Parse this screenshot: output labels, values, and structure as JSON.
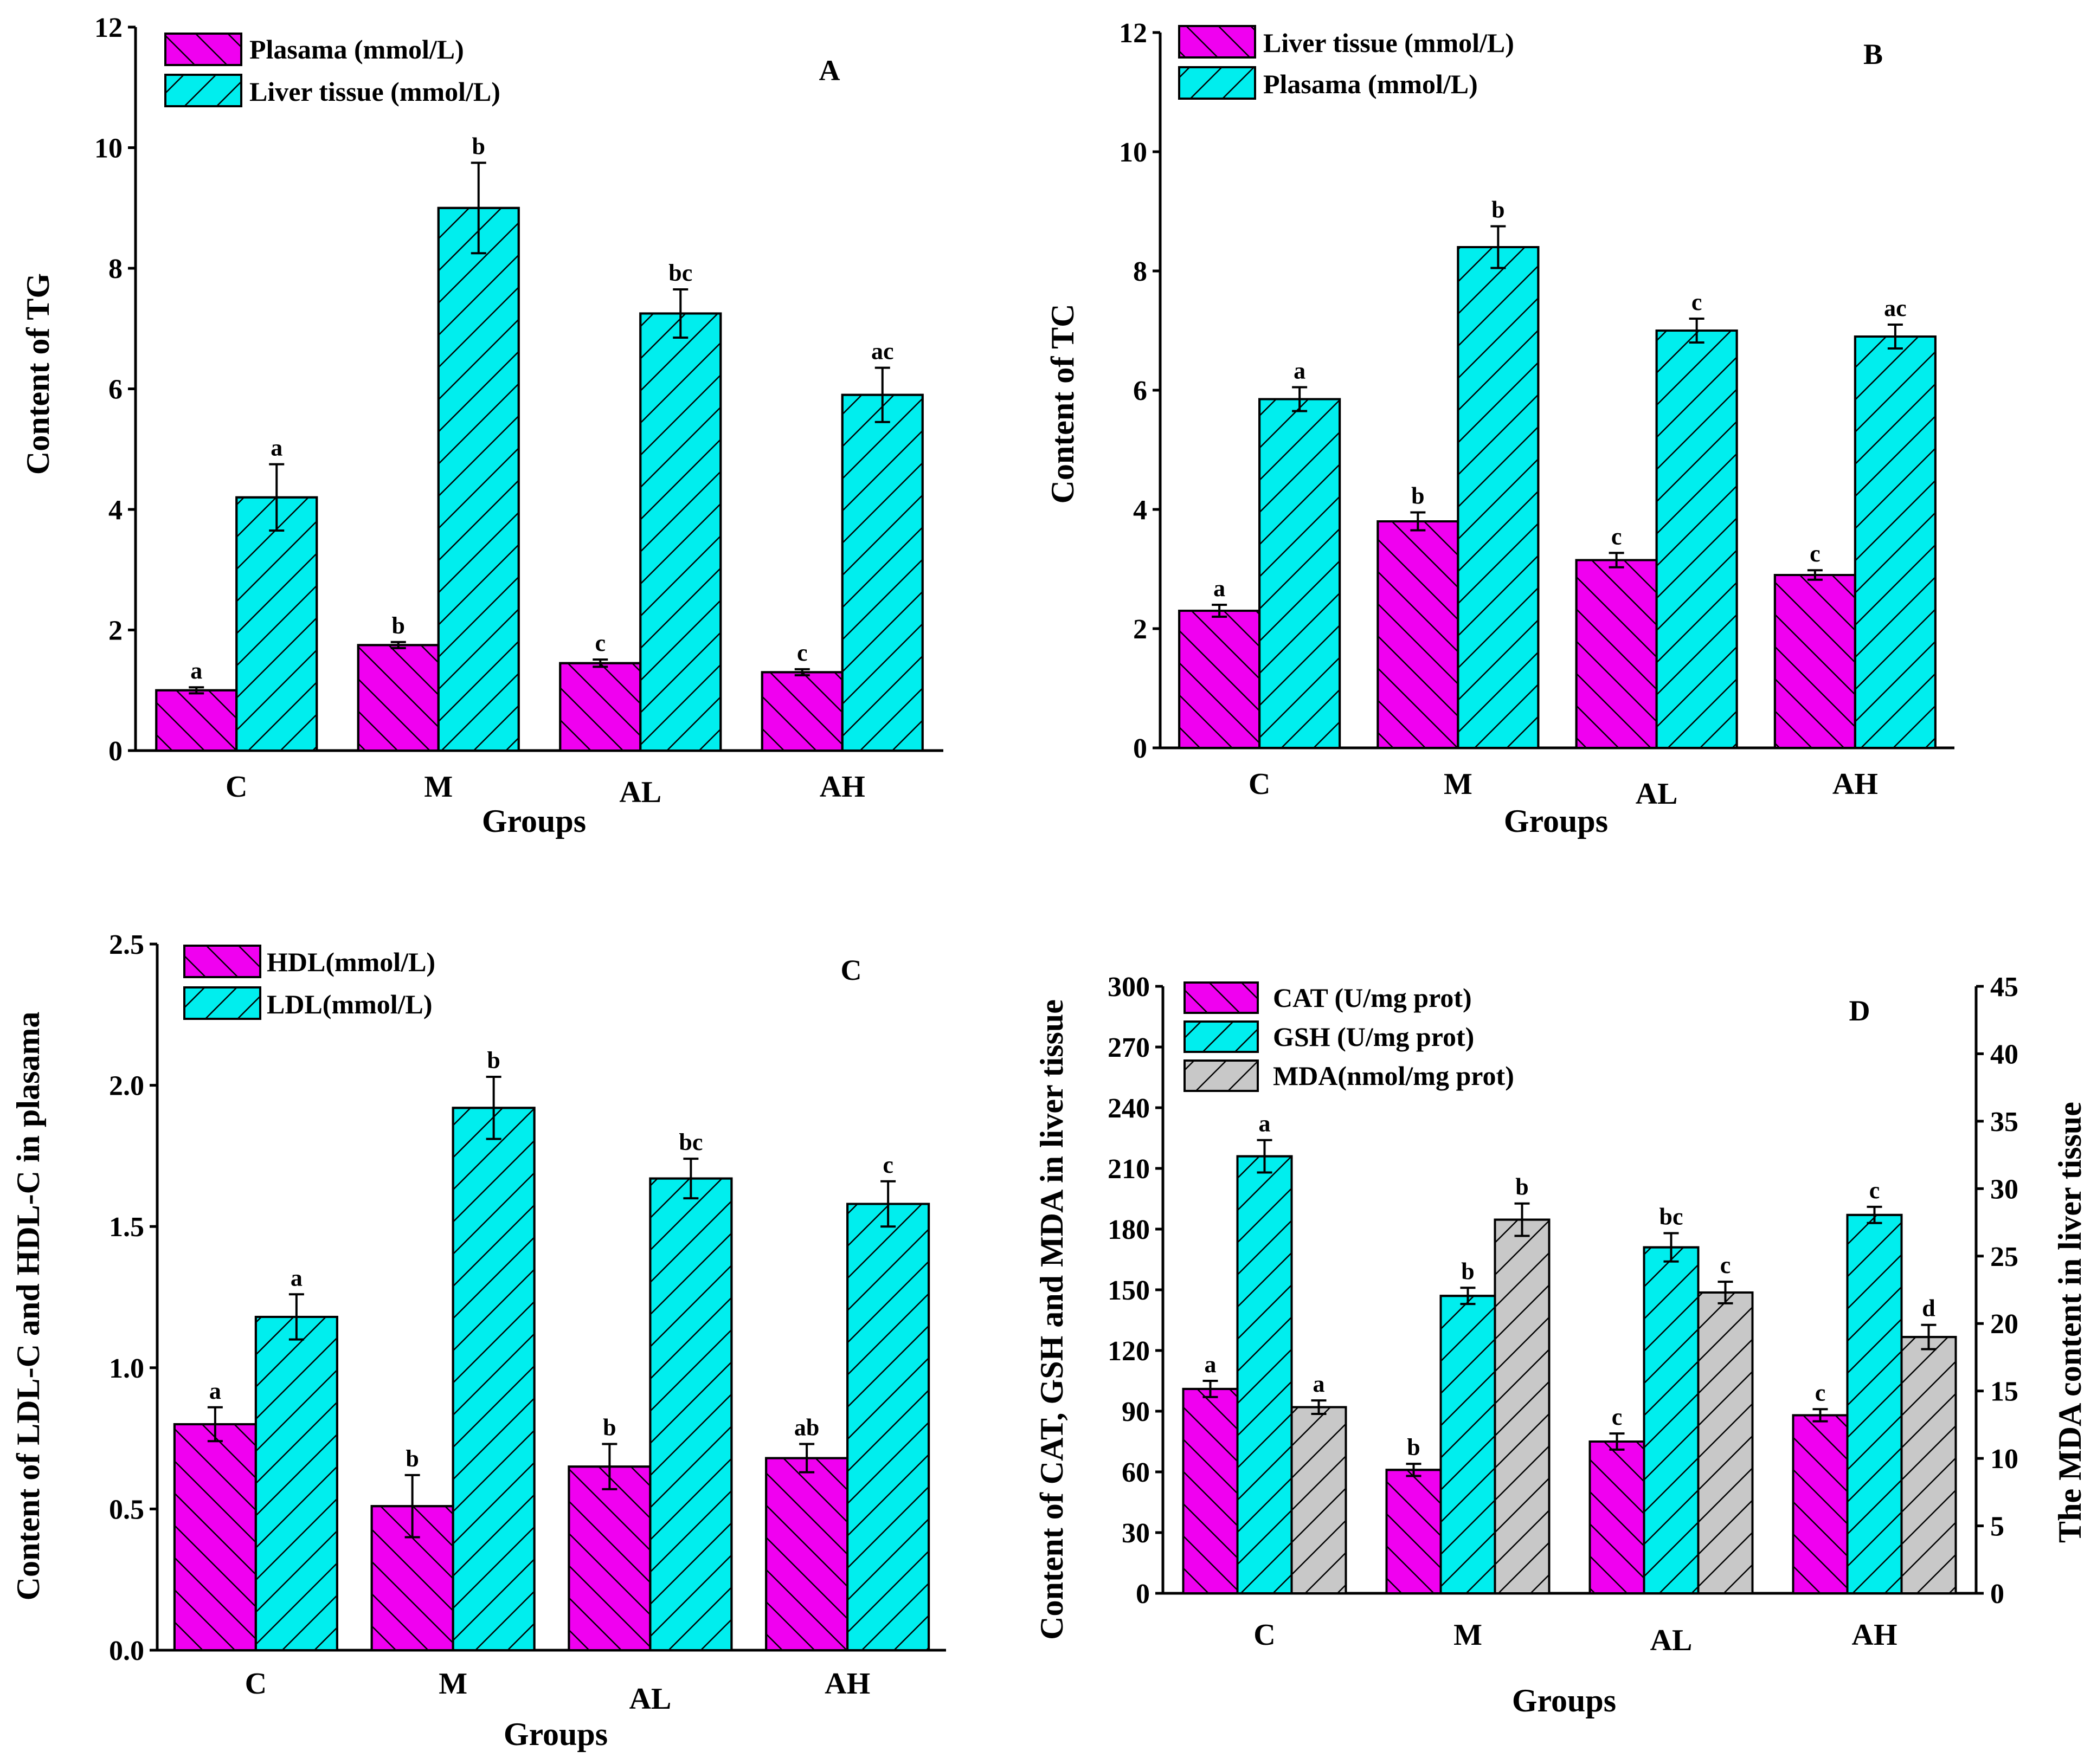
{
  "colors": {
    "magenta": "#f000f0",
    "cyan": "#00eeee",
    "gray": "#c8c8c8"
  },
  "chart_data": [
    {
      "type": "bar",
      "panel_label": "A",
      "categories": [
        "C",
        "M",
        "AL",
        "AH"
      ],
      "xlabel": "Groups",
      "ylabel": "Content of TG",
      "ylim": [
        0,
        12
      ],
      "yticks": [
        "0",
        "2",
        "4",
        "6",
        "8",
        "10",
        "12"
      ],
      "series": [
        {
          "name": "Plasama (mmol/L)",
          "color": "magenta",
          "hatch": "backslash",
          "values": [
            1.0,
            1.75,
            1.45,
            1.3
          ],
          "errors": [
            0.05,
            0.05,
            0.06,
            0.05
          ],
          "letters": [
            "a",
            "b",
            "c",
            "c"
          ]
        },
        {
          "name": "Liver tissue (mmol/L)",
          "color": "cyan",
          "hatch": "slash",
          "values": [
            4.2,
            9.0,
            7.25,
            5.9
          ],
          "errors": [
            0.55,
            0.75,
            0.4,
            0.45
          ],
          "letters": [
            "a",
            "b",
            "bc",
            "ac"
          ]
        }
      ]
    },
    {
      "type": "bar",
      "panel_label": "B",
      "categories": [
        "C",
        "M",
        "AL",
        "AH"
      ],
      "xlabel": "Groups",
      "ylabel": "Content of TC",
      "ylim": [
        0,
        12
      ],
      "yticks": [
        "0",
        "2",
        "4",
        "6",
        "8",
        "10",
        "12"
      ],
      "series": [
        {
          "name": "Liver tissue (mmol/L)",
          "color": "magenta",
          "hatch": "backslash",
          "values": [
            2.3,
            3.8,
            3.15,
            2.9
          ],
          "errors": [
            0.1,
            0.15,
            0.12,
            0.08
          ],
          "letters": [
            "a",
            "b",
            "c",
            "c"
          ]
        },
        {
          "name": "Plasama (mmol/L)",
          "color": "cyan",
          "hatch": "slash",
          "values": [
            5.85,
            8.4,
            7.0,
            6.9
          ],
          "errors": [
            0.2,
            0.35,
            0.2,
            0.2
          ],
          "letters": [
            "a",
            "b",
            "c",
            "ac"
          ]
        }
      ]
    },
    {
      "type": "bar",
      "panel_label": "C",
      "categories": [
        "C",
        "M",
        "AL",
        "AH"
      ],
      "xlabel": "Groups",
      "ylabel": "Content of LDL-C and HDL-C in plasama",
      "ylim": [
        0,
        2.5
      ],
      "yticks": [
        "0.0",
        "0.5",
        "1.0",
        "1.5",
        "2.0",
        "2.5"
      ],
      "series": [
        {
          "name": "HDL(mmol/L)",
          "color": "magenta",
          "hatch": "backslash",
          "values": [
            0.8,
            0.51,
            0.65,
            0.68
          ],
          "errors": [
            0.06,
            0.11,
            0.08,
            0.05
          ],
          "letters": [
            "a",
            "b",
            "b",
            "ab"
          ]
        },
        {
          "name": "LDL(mmol/L)",
          "color": "cyan",
          "hatch": "slash",
          "values": [
            1.18,
            1.92,
            1.67,
            1.58
          ],
          "errors": [
            0.08,
            0.11,
            0.07,
            0.08
          ],
          "letters": [
            "a",
            "b",
            "bc",
            "c"
          ]
        }
      ]
    },
    {
      "type": "bar",
      "panel_label": "D",
      "categories": [
        "C",
        "M",
        "AL",
        "AH"
      ],
      "xlabel": "Groups",
      "ylabel": "Content of CAT, GSH and MDA in liver tissue",
      "y2label": "The MDA content in liver tissue",
      "ylim": [
        0,
        300
      ],
      "yticks": [
        "0",
        "30",
        "60",
        "90",
        "120",
        "150",
        "180",
        "210",
        "240",
        "270",
        "300"
      ],
      "y2lim": [
        0,
        45
      ],
      "y2ticks": [
        "0",
        "5",
        "10",
        "15",
        "20",
        "25",
        "30",
        "35",
        "40",
        "45"
      ],
      "series": [
        {
          "name": "CAT (U/mg prot)",
          "color": "magenta",
          "hatch": "backslash",
          "values": [
            101,
            61,
            75,
            88
          ],
          "errors": [
            4,
            3,
            4,
            3
          ],
          "letters": [
            "a",
            "b",
            "c",
            "c"
          ]
        },
        {
          "name": "GSH (U/mg prot)",
          "color": "cyan",
          "hatch": "slash",
          "values": [
            216,
            147,
            171,
            187
          ],
          "errors": [
            8,
            4,
            7,
            4
          ],
          "letters": [
            "a",
            "b",
            "bc",
            "c"
          ]
        },
        {
          "name": "MDA(nmol/mg prot)",
          "color": "gray",
          "hatch": "slash",
          "axis": "right",
          "values": [
            13.8,
            27.7,
            22.3,
            19.0
          ],
          "errors": [
            0.5,
            1.2,
            0.8,
            0.9
          ],
          "letters": [
            "a",
            "b",
            "c",
            "d"
          ]
        }
      ]
    }
  ]
}
